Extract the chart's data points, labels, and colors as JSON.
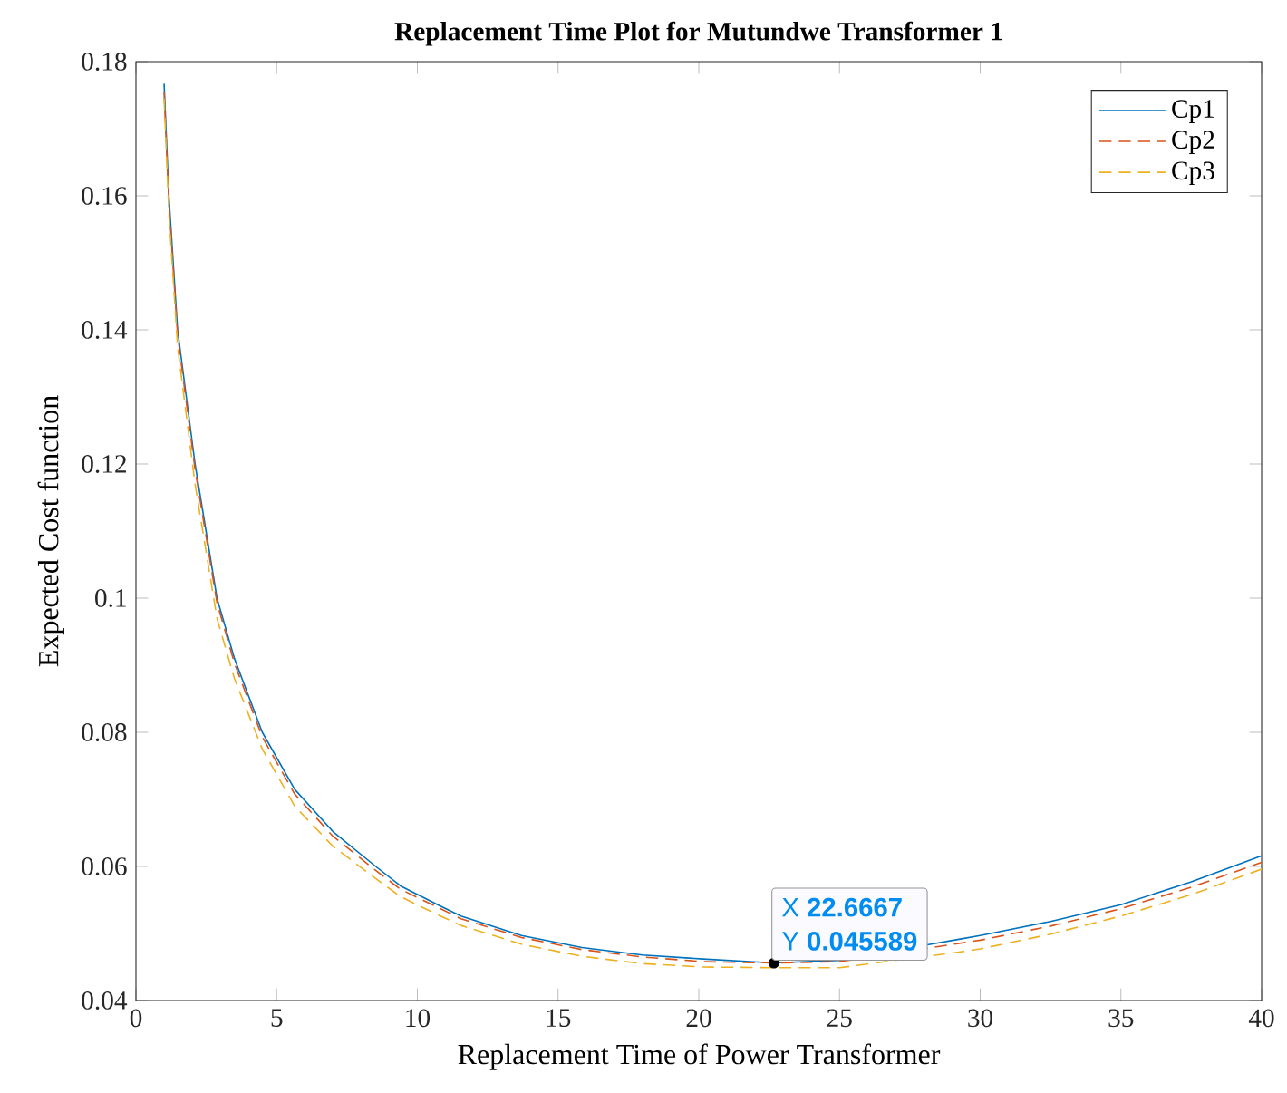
{
  "chart_data": {
    "type": "line",
    "title": "Replacement Time Plot for Mutundwe Transformer 1",
    "xlabel": "Replacement Time of Power Transformer",
    "ylabel": "Expected Cost function",
    "x": [
      1,
      1.17,
      1.48,
      2.1,
      2.88,
      3.5,
      4.49,
      5.64,
      7,
      8.52,
      9.4,
      10.77,
      11.55,
      13.7,
      15.85,
      18,
      20.15,
      22.6667,
      25,
      29.2,
      30,
      32.5,
      35,
      37.5,
      40
    ],
    "series": [
      {
        "name": "Cp1",
        "color": "#0072bd",
        "line_style": "solid",
        "values": [
          0.1767,
          0.16,
          0.14,
          0.12,
          0.1,
          0.091,
          0.08,
          0.0715,
          0.0652,
          0.06,
          0.0571,
          0.0542,
          0.0526,
          0.0497,
          0.0479,
          0.0468,
          0.0462,
          0.0456,
          0.046,
          0.0491,
          0.0497,
          0.0518,
          0.0543,
          0.0577,
          0.0616
        ]
      },
      {
        "name": "Cp2",
        "color": "#d95319",
        "line_style": "dashed",
        "values": [
          0.1755,
          0.159,
          0.1392,
          0.1192,
          0.0993,
          0.0903,
          0.0793,
          0.0708,
          0.0645,
          0.0594,
          0.0566,
          0.0538,
          0.0522,
          0.0494,
          0.0476,
          0.0465,
          0.0458,
          0.0456,
          0.0458,
          0.0485,
          0.049,
          0.0511,
          0.0537,
          0.0569,
          0.0606
        ]
      },
      {
        "name": "Cp3",
        "color": "#edb120",
        "line_style": "dashed",
        "values": [
          0.1745,
          0.1575,
          0.1375,
          0.117,
          0.097,
          0.088,
          0.0775,
          0.069,
          0.063,
          0.0582,
          0.0555,
          0.0527,
          0.0512,
          0.0484,
          0.0466,
          0.0455,
          0.045,
          0.0449,
          0.0449,
          0.0472,
          0.0477,
          0.0499,
          0.0526,
          0.0558,
          0.0596
        ]
      }
    ],
    "xlim": [
      0,
      40
    ],
    "ylim": [
      0.04,
      0.18
    ],
    "xticks": [
      0,
      5,
      10,
      15,
      20,
      25,
      30,
      35,
      40
    ],
    "yticks": [
      0.04,
      0.06,
      0.08,
      0.1,
      0.12,
      0.14,
      0.16,
      0.18
    ],
    "legend": "top right",
    "marker": "none",
    "annotations": [
      {
        "text": "X **22.6667**",
        "x": 22.6667,
        "y": 0.045589
      },
      {
        "text": "Y **0.045589**",
        "x": 22.6667,
        "y": 0.045589
      }
    ]
  }
}
